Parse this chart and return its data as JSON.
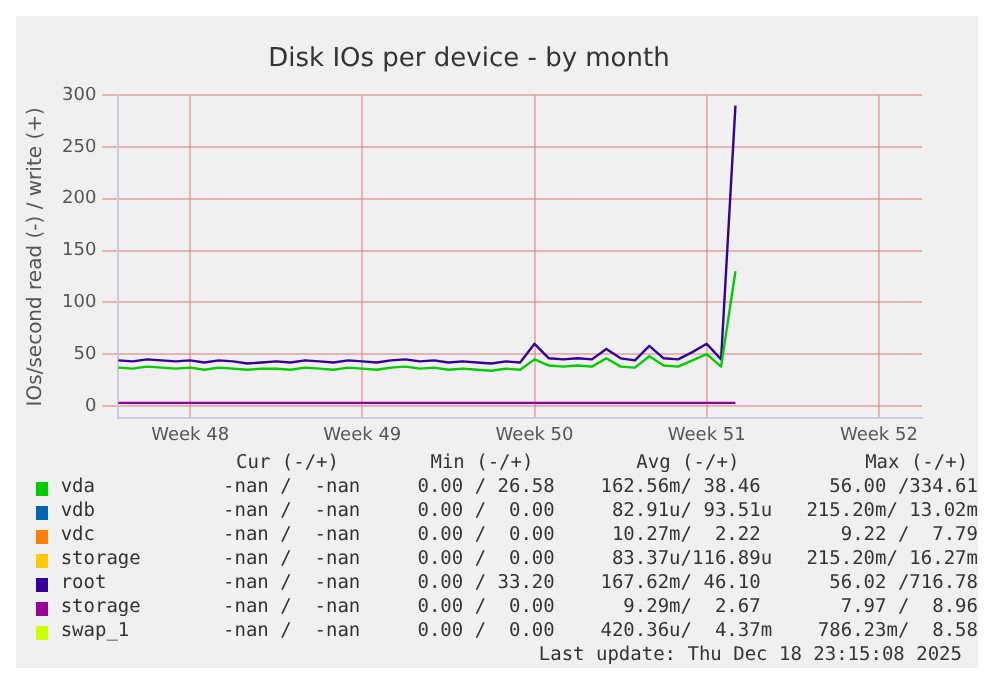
{
  "chart_data": {
    "type": "line",
    "title": "Disk IOs per device - by month",
    "ylabel": "IOs/second read (-) / write (+)",
    "categories": [
      null,
      null,
      null,
      null,
      null,
      "Week 48",
      null,
      null,
      null,
      null,
      null,
      null,
      null,
      null,
      null,
      null,
      null,
      "Week 49",
      null,
      null,
      null,
      null,
      null,
      null,
      null,
      null,
      null,
      null,
      null,
      "Week 50",
      null,
      null,
      null,
      null,
      null,
      null,
      null,
      null,
      null,
      null,
      null,
      "Week 51",
      null,
      null,
      null,
      null,
      null,
      null,
      null,
      null,
      null,
      null,
      null,
      "Week 52",
      null,
      null,
      null
    ],
    "series": [
      {
        "name": "vda",
        "color": "#00cc00",
        "values": [
          37,
          36,
          38,
          37,
          36,
          37,
          35,
          37,
          36,
          35,
          36,
          36,
          35,
          37,
          36,
          35,
          37,
          36,
          35,
          37,
          38,
          36,
          37,
          35,
          36,
          35,
          34,
          36,
          35,
          45,
          39,
          38,
          39,
          38,
          46,
          38,
          37,
          48,
          39,
          38,
          44,
          50,
          38,
          130,
          null,
          null,
          null,
          null,
          null,
          null,
          null,
          null,
          null,
          null,
          null,
          null,
          null
        ]
      },
      {
        "name": "vdb",
        "color": "#0066b3",
        "values": [
          null,
          null,
          null,
          null,
          null,
          null,
          null,
          null,
          null,
          null,
          null,
          null,
          null,
          null,
          null,
          null,
          null,
          null,
          null,
          null,
          null,
          null,
          null,
          null,
          null,
          null,
          null,
          null,
          null,
          null,
          null,
          null,
          null,
          null,
          null,
          null,
          null,
          null,
          null,
          null,
          null,
          null,
          null,
          null,
          null,
          null,
          null,
          null,
          null,
          null,
          null,
          null,
          null,
          null,
          null,
          null,
          null
        ]
      },
      {
        "name": "vdc",
        "color": "#ff8000",
        "values": [
          null,
          null,
          null,
          null,
          null,
          null,
          null,
          null,
          null,
          null,
          null,
          null,
          null,
          null,
          null,
          null,
          null,
          null,
          null,
          null,
          null,
          null,
          null,
          null,
          null,
          null,
          null,
          null,
          null,
          null,
          null,
          null,
          null,
          null,
          null,
          null,
          null,
          null,
          null,
          null,
          null,
          null,
          null,
          null,
          null,
          null,
          null,
          null,
          null,
          null,
          null,
          null,
          null,
          null,
          null,
          null,
          null
        ]
      },
      {
        "name": "storage",
        "color": "#ffcc00",
        "values": [
          null,
          null,
          null,
          null,
          null,
          null,
          null,
          null,
          null,
          null,
          null,
          null,
          null,
          null,
          null,
          null,
          null,
          null,
          null,
          null,
          null,
          null,
          null,
          null,
          null,
          null,
          null,
          null,
          null,
          null,
          null,
          null,
          null,
          null,
          null,
          null,
          null,
          null,
          null,
          null,
          null,
          null,
          null,
          null,
          null,
          null,
          null,
          null,
          null,
          null,
          null,
          null,
          null,
          null,
          null,
          null,
          null
        ]
      },
      {
        "name": "root",
        "color": "#330099",
        "values": [
          44,
          43,
          45,
          44,
          43,
          44,
          42,
          44,
          43,
          41,
          42,
          43,
          42,
          44,
          43,
          42,
          44,
          43,
          42,
          44,
          45,
          43,
          44,
          42,
          43,
          42,
          41,
          43,
          42,
          60,
          46,
          45,
          46,
          45,
          55,
          46,
          44,
          58,
          46,
          45,
          52,
          60,
          45,
          290,
          null,
          null,
          null,
          null,
          null,
          null,
          null,
          null,
          null,
          null,
          null,
          null,
          null
        ]
      },
      {
        "name": "storage",
        "color": "#990099",
        "values": [
          3,
          3,
          3,
          3,
          3,
          3,
          3,
          3,
          3,
          3,
          3,
          3,
          3,
          3,
          3,
          3,
          3,
          3,
          3,
          3,
          3,
          3,
          3,
          3,
          3,
          3,
          3,
          3,
          3,
          3,
          3,
          3,
          3,
          3,
          3,
          3,
          3,
          3,
          3,
          3,
          3,
          3,
          3,
          3,
          null,
          null,
          null,
          null,
          null,
          null,
          null,
          null,
          null,
          null,
          null,
          null,
          null
        ]
      },
      {
        "name": "swap_1",
        "color": "#ccff00",
        "values": [
          null,
          null,
          null,
          null,
          null,
          null,
          null,
          null,
          null,
          null,
          null,
          null,
          null,
          null,
          null,
          null,
          null,
          null,
          null,
          null,
          null,
          null,
          null,
          null,
          null,
          null,
          null,
          null,
          null,
          null,
          null,
          null,
          null,
          null,
          null,
          null,
          null,
          null,
          null,
          null,
          null,
          null,
          null,
          null,
          null,
          null,
          null,
          null,
          null,
          null,
          null,
          null,
          null,
          null,
          null,
          null,
          null
        ]
      }
    ],
    "ylim": [
      -12,
      300
    ],
    "yticks": [
      0,
      50,
      100,
      150,
      200,
      250,
      300
    ],
    "grid": true,
    "legend": "bottom",
    "marker": "none",
    "line_style": "solid",
    "annotations": [
      "Cur (-/+)        Min (-/+)         Avg (-/+)           Max (-/+)",
      "-nan /  -nan     0.00 / 26.58    162.56m/ 38.46      56.00 /334.61",
      "-nan /  -nan     0.00 /  0.00     82.91u/ 93.51u   215.20m/ 13.02m",
      "-nan /  -nan     0.00 /  0.00     10.27m/  2.22       9.22 /  7.79",
      "-nan /  -nan     0.00 /  0.00     83.37u/116.89u   215.20m/ 16.27m",
      "-nan /  -nan     0.00 / 33.20    167.62m/ 46.10      56.02 /716.78",
      "-nan /  -nan     0.00 /  0.00      9.29m/  2.67       7.97 /  8.96",
      "-nan /  -nan     0.00 /  0.00    420.36u/  4.37m    786.23m/  8.58",
      "Last update: Thu Dec 18 23:15:08 2025"
    ]
  }
}
